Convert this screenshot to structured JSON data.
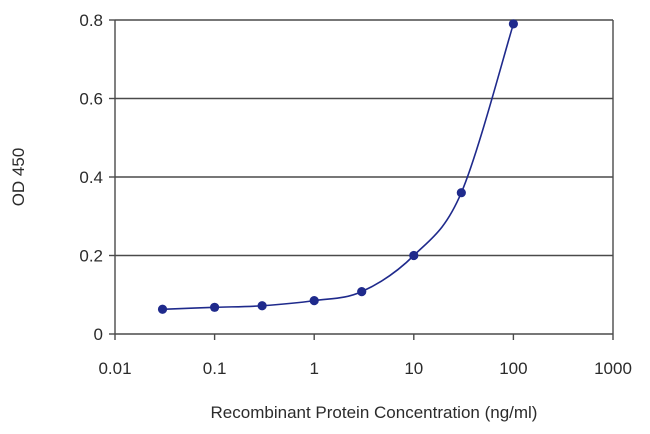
{
  "chart_data": {
    "type": "line",
    "title": "",
    "xlabel": "Recombinant Protein Concentration (ng/ml)",
    "ylabel": "OD 450",
    "x_scale": "log",
    "xlim": [
      0.01,
      1000
    ],
    "ylim": [
      0,
      0.8
    ],
    "x_ticks": [
      0.01,
      0.1,
      1,
      10,
      100,
      1000
    ],
    "x_tick_labels": [
      "0.01",
      "0.1",
      "1",
      "10",
      "100",
      "1000"
    ],
    "y_ticks": [
      0,
      0.2,
      0.4,
      0.6,
      0.8
    ],
    "y_tick_labels": [
      "0",
      "0.2",
      "0.4",
      "0.6",
      "0.8"
    ],
    "grid": "horizontal",
    "legend": "none",
    "series": [
      {
        "x": [
          0.03,
          0.1,
          0.3,
          1,
          3,
          10,
          30,
          100
        ],
        "y": [
          0.063,
          0.068,
          0.072,
          0.085,
          0.108,
          0.2,
          0.36,
          0.79
        ]
      }
    ],
    "colors": {
      "series": "#1f2a8c",
      "grid": "#4a4a4a",
      "axis": "#4a4a4a"
    }
  }
}
